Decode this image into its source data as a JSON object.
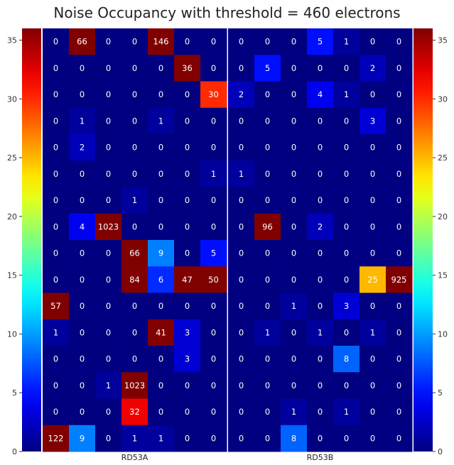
{
  "chart_data": {
    "type": "heatmap",
    "title": "Noise Occupancy with threshold = 460 electrons",
    "colormap": "jet",
    "color_range": [
      0,
      36
    ],
    "colorbar_ticks": [
      0,
      5,
      10,
      15,
      20,
      25,
      30,
      35
    ],
    "y_ticks": [
      0,
      5,
      10,
      15,
      20,
      25,
      30,
      35
    ],
    "y_range": [
      0,
      36
    ],
    "panels": [
      {
        "name": "RD53A",
        "rows_top_to_bottom": [
          [
            0,
            66,
            0,
            0,
            146,
            0,
            0
          ],
          [
            0,
            0,
            0,
            0,
            0,
            36,
            0
          ],
          [
            0,
            0,
            0,
            0,
            0,
            0,
            30
          ],
          [
            0,
            1,
            0,
            0,
            1,
            0,
            0
          ],
          [
            0,
            2,
            0,
            0,
            0,
            0,
            0
          ],
          [
            0,
            0,
            0,
            0,
            0,
            0,
            1
          ],
          [
            0,
            0,
            0,
            1,
            0,
            0,
            0
          ],
          [
            0,
            4,
            1023,
            0,
            0,
            0,
            0
          ],
          [
            0,
            0,
            0,
            66,
            9,
            0,
            5
          ],
          [
            0,
            0,
            0,
            84,
            6,
            47,
            50
          ],
          [
            57,
            0,
            0,
            0,
            0,
            0,
            0
          ],
          [
            1,
            0,
            0,
            0,
            41,
            3,
            0
          ],
          [
            0,
            0,
            0,
            0,
            0,
            3,
            0
          ],
          [
            0,
            0,
            1,
            1023,
            0,
            0,
            0
          ],
          [
            0,
            0,
            0,
            32,
            0,
            0,
            0
          ],
          [
            122,
            9,
            0,
            1,
            1,
            0,
            0
          ]
        ]
      },
      {
        "name": "RD53B",
        "rows_top_to_bottom": [
          [
            0,
            0,
            0,
            5,
            1,
            0,
            0
          ],
          [
            0,
            5,
            0,
            0,
            0,
            2,
            0
          ],
          [
            2,
            0,
            0,
            4,
            1,
            0,
            0
          ],
          [
            0,
            0,
            0,
            0,
            0,
            3,
            0
          ],
          [
            0,
            0,
            0,
            0,
            0,
            0,
            0
          ],
          [
            1,
            0,
            0,
            0,
            0,
            0,
            0
          ],
          [
            0,
            0,
            0,
            0,
            0,
            0,
            0
          ],
          [
            0,
            96,
            0,
            2,
            0,
            0,
            0
          ],
          [
            0,
            0,
            0,
            0,
            0,
            0,
            0
          ],
          [
            0,
            0,
            0,
            0,
            0,
            25,
            925
          ],
          [
            0,
            0,
            1,
            0,
            3,
            0,
            0
          ],
          [
            0,
            1,
            0,
            1,
            0,
            1,
            0
          ],
          [
            0,
            0,
            0,
            0,
            8,
            0,
            0
          ],
          [
            0,
            0,
            0,
            0,
            0,
            0,
            0
          ],
          [
            0,
            0,
            1,
            0,
            1,
            0,
            0
          ],
          [
            0,
            0,
            8,
            0,
            0,
            0,
            0
          ]
        ]
      }
    ],
    "grid": false
  }
}
